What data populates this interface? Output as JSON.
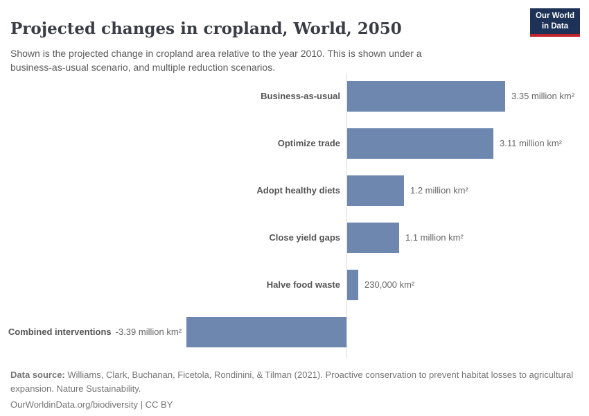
{
  "header": {
    "title": "Projected changes in cropland, World, 2050",
    "subtitle": "Shown is the projected change in cropland area relative to the year 2010. This is shown under a business-as-usual scenario, and multiple reduction scenarios.",
    "logo": {
      "line1": "Our World",
      "line2": "in Data"
    }
  },
  "chart_data": {
    "type": "bar",
    "orientation": "horizontal",
    "title": "Projected changes in cropland, World, 2050",
    "unit": "million km²",
    "baseline": 0,
    "xlim": [
      -3.39,
      3.35
    ],
    "grid": false,
    "legend": "none",
    "bar_color": "#6d87ae",
    "axis_color": "#dcdcdc",
    "categories": [
      "Business-as-usual",
      "Optimize trade",
      "Adopt healthy diets",
      "Close yield gaps",
      "Halve food waste",
      "Combined interventions"
    ],
    "values": [
      3.35,
      3.11,
      1.2,
      1.1,
      0.23,
      -3.39
    ],
    "bars": [
      {
        "label": "Business-as-usual",
        "value": 3.35,
        "value_label": "3.35 million km²"
      },
      {
        "label": "Optimize trade",
        "value": 3.11,
        "value_label": "3.11 million km²"
      },
      {
        "label": "Adopt healthy diets",
        "value": 1.2,
        "value_label": "1.2 million km²"
      },
      {
        "label": "Close yield gaps",
        "value": 1.1,
        "value_label": "1.1 million km²"
      },
      {
        "label": "Halve food waste",
        "value": 0.23,
        "value_label": "230,000 km²"
      },
      {
        "label": "Combined interventions",
        "value": -3.39,
        "value_label": "-3.39 million km²"
      }
    ]
  },
  "footer": {
    "datasource_label": "Data source:",
    "datasource_text": " Williams, Clark, Buchanan, Ficetola, Rondinini, & Tilman (2021). Proactive conservation to prevent habitat losses to agricultural expansion. Nature Sustainability.",
    "license": "OurWorldinData.org/biodiversity | CC BY"
  }
}
